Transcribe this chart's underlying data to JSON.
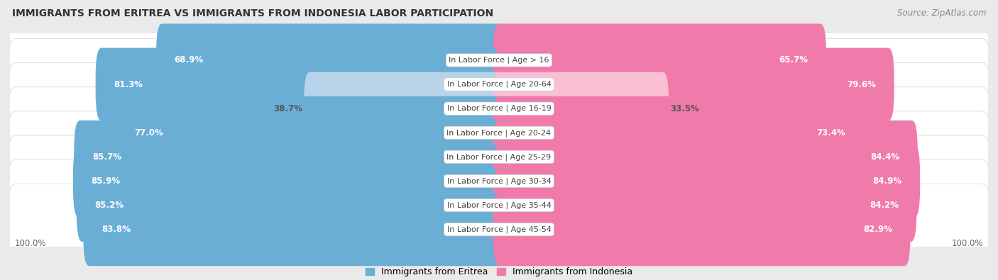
{
  "title": "IMMIGRANTS FROM ERITREA VS IMMIGRANTS FROM INDONESIA LABOR PARTICIPATION",
  "source": "Source: ZipAtlas.com",
  "categories": [
    "In Labor Force | Age > 16",
    "In Labor Force | Age 20-64",
    "In Labor Force | Age 16-19",
    "In Labor Force | Age 20-24",
    "In Labor Force | Age 25-29",
    "In Labor Force | Age 30-34",
    "In Labor Force | Age 35-44",
    "In Labor Force | Age 45-54"
  ],
  "eritrea_values": [
    68.9,
    81.3,
    38.7,
    77.0,
    85.7,
    85.9,
    85.2,
    83.8
  ],
  "indonesia_values": [
    65.7,
    79.6,
    33.5,
    73.4,
    84.4,
    84.9,
    84.2,
    82.9
  ],
  "eritrea_color": "#6aaed6",
  "eritrea_color_light": "#b8d4ea",
  "indonesia_color": "#f07aaa",
  "indonesia_color_light": "#f9c0d4",
  "bg_color": "#eaeaea",
  "row_bg_color": "#f0f0f0",
  "max_val": 100.0,
  "bar_height": 0.62,
  "legend_eritrea": "Immigrants from Eritrea",
  "legend_indonesia": "Immigrants from Indonesia"
}
